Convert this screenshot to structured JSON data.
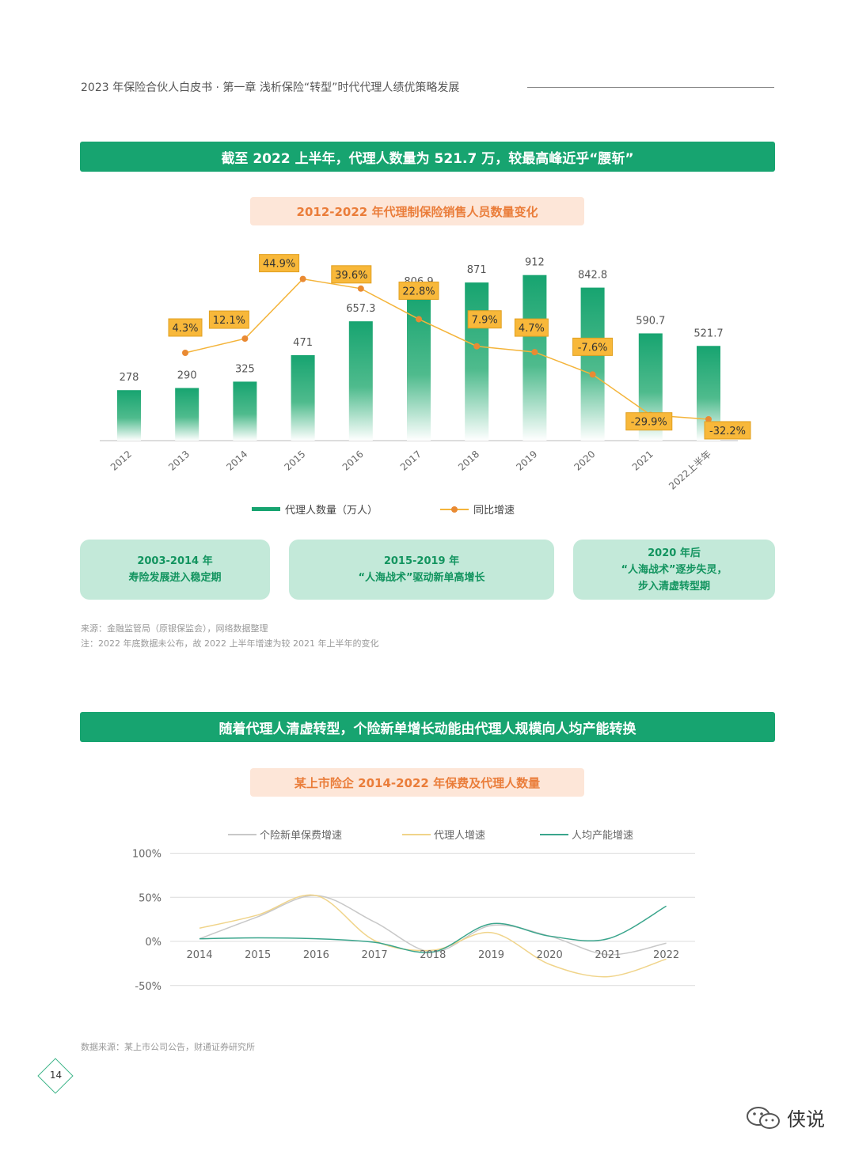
{
  "header": {
    "title": "2023 年保险合伙人白皮书 · 第一章  浅析保险“转型”时代代理人绩优策略发展"
  },
  "section1": {
    "banner": "截至 2022 上半年，代理人数量为 521.7 万，较最高峰近乎“腰斩”",
    "chart_title": "2012-2022 年代理制保险销售人员数量变化",
    "legend_bar": "代理人数量（万人）",
    "legend_line": "同比增速",
    "phases": [
      {
        "line1": "2003-2014 年",
        "line2": "寿险发展进入稳定期"
      },
      {
        "line1": "2015-2019 年",
        "line2": "“人海战术”驱动新单高增长"
      },
      {
        "line1": "2020 年后",
        "line2": "“人海战术”逐步失灵，",
        "line3": "步入清虚转型期"
      }
    ],
    "source": "来源：金融监管局（原银保监会），网络数据整理",
    "note": "注：2022 年底数据未公布，故 2022 上半年增速为较 2021 年上半年的变化"
  },
  "section2": {
    "banner": "随着代理人清虚转型，个险新单增长动能由代理人规模向人均产能转换",
    "chart_title": "某上市险企 2014-2022 年保费及代理人数量",
    "legend": [
      "个险新单保费增速",
      "代理人增速",
      "人均产能增速"
    ],
    "source": "数据来源：某上市公司公告，财通证券研究所"
  },
  "page_number": "14",
  "watermark": "侠说",
  "colors": {
    "green": "#17a470",
    "orange": "#f4b43a",
    "gray": "#c8c8c8",
    "teal": "#3aa58c"
  },
  "chart_data": [
    {
      "type": "bar",
      "categories": [
        "2012",
        "2013",
        "2014",
        "2015",
        "2016",
        "2017",
        "2018",
        "2019",
        "2020",
        "2021",
        "2022上半年"
      ],
      "series": [
        {
          "name": "代理人数量（万人）",
          "values": [
            278,
            290,
            325,
            471,
            657.3,
            806.9,
            871,
            912,
            842.8,
            590.7,
            521.7
          ]
        },
        {
          "name": "同比增速",
          "type": "line",
          "values": [
            null,
            4.3,
            12.1,
            44.9,
            39.6,
            22.8,
            7.9,
            4.7,
            -7.6,
            -29.9,
            -32.2
          ],
          "labels": [
            null,
            "4.3%",
            "12.1%",
            "44.9%",
            "39.6%",
            "22.8%",
            "7.9%",
            "4.7%",
            "-7.6%",
            "-29.9%",
            "-32.2%"
          ]
        }
      ],
      "xlabel": "",
      "ylabel": ""
    },
    {
      "type": "line",
      "x": [
        "2014",
        "2015",
        "2016",
        "2017",
        "2018",
        "2019",
        "2020",
        "2021",
        "2022"
      ],
      "yticks": [
        "100%",
        "50%",
        "0%",
        "-50%"
      ],
      "ylim": [
        -50,
        100
      ],
      "series": [
        {
          "name": "个险新单保费增速",
          "values": [
            3,
            28,
            52,
            22,
            -12,
            18,
            6,
            -15,
            -2
          ]
        },
        {
          "name": "代理人增速",
          "values": [
            15,
            30,
            52,
            1,
            -10,
            10,
            -26,
            -40,
            -20
          ]
        },
        {
          "name": "人均产能增速",
          "values": [
            3,
            4,
            3,
            -1,
            -12,
            20,
            6,
            3,
            40
          ]
        }
      ],
      "grid": true
    }
  ]
}
